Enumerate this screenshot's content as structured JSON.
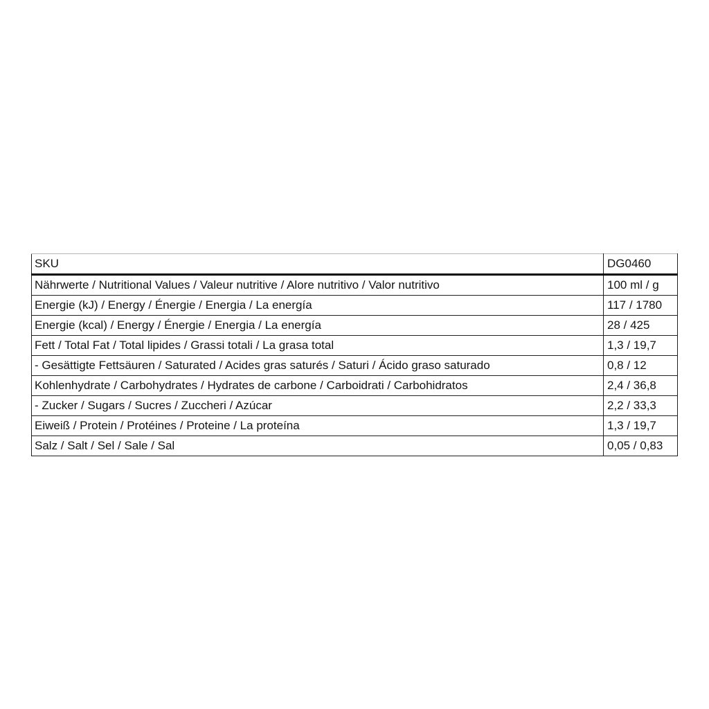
{
  "table": {
    "header": {
      "label": "SKU",
      "value": "DG0460"
    },
    "rows": [
      {
        "label": "Nährwerte / Nutritional Values / Valeur nutritive / Alore nutritivo / Valor nutritivo",
        "value": "100 ml / g"
      },
      {
        "label": "Energie (kJ) / Energy / Énergie / Energia / La energía",
        "value": "117 / 1780"
      },
      {
        "label": "Energie (kcal) / Energy / Énergie / Energia / La energía",
        "value": "28 / 425"
      },
      {
        "label": "Fett / Total Fat / Total lipides / Grassi totali / La grasa total",
        "value": "1,3 / 19,7"
      },
      {
        "label": "- Gesättigte Fettsäuren / Saturated / Acides gras saturés / Saturi / Ácido graso saturado",
        "value": "0,8 / 12"
      },
      {
        "label": "Kohlenhydrate / Carbohydrates / Hydrates de carbone / Carboidrati / Carbohidratos",
        "value": "2,4 / 36,8"
      },
      {
        "label": "- Zucker / Sugars / Sucres / Zuccheri / Azúcar",
        "value": "2,2 / 33,3"
      },
      {
        "label": "Eiweiß / Protein / Protéines / Proteine / La proteína",
        "value": "1,3 / 19,7"
      },
      {
        "label": "Salz / Salt / Sel / Sale / Sal",
        "value": "0,05 / 0,83"
      }
    ],
    "colors": {
      "border": "#1f1f1f",
      "header_divider": "#000000",
      "text": "#141414",
      "background": "#ffffff"
    }
  }
}
